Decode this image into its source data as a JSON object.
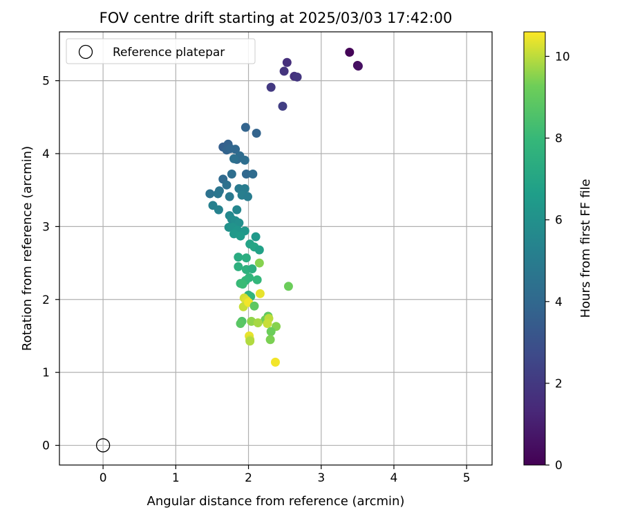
{
  "chart_data": {
    "type": "scatter",
    "title": "FOV centre drift starting at 2025/03/03 17:42:00",
    "xlabel": "Angular distance from reference (arcmin)",
    "ylabel": "Rotation from reference (arcmin)",
    "xlim": [
      -0.6,
      5.35
    ],
    "ylim": [
      -0.27,
      5.67
    ],
    "xticks": [
      0,
      1,
      2,
      3,
      4,
      5
    ],
    "yticks": [
      0,
      1,
      2,
      3,
      4,
      5
    ],
    "grid": true,
    "legend": {
      "placement": "upper-left",
      "entries": [
        "Reference platepar"
      ]
    },
    "reference_point": {
      "label": "Reference platepar",
      "x": 0,
      "y": 0,
      "marker": "hollow-circle"
    },
    "colorbar": {
      "label": "Hours from first FF file",
      "colormap": "viridis",
      "range": [
        0,
        10.6
      ],
      "ticks": [
        0,
        2,
        4,
        6,
        8,
        10
      ]
    },
    "series": [
      {
        "points": [
          {
            "x": 3.39,
            "y": 5.39,
            "c": 0.1
          },
          {
            "x": 3.5,
            "y": 5.21,
            "c": 0.3
          },
          {
            "x": 3.51,
            "y": 5.2,
            "c": 0.5
          },
          {
            "x": 2.53,
            "y": 5.25,
            "c": 1.6
          },
          {
            "x": 2.49,
            "y": 5.13,
            "c": 1.8
          },
          {
            "x": 2.63,
            "y": 5.06,
            "c": 1.7
          },
          {
            "x": 2.67,
            "y": 5.05,
            "c": 1.9
          },
          {
            "x": 2.31,
            "y": 4.91,
            "c": 2.0
          },
          {
            "x": 2.47,
            "y": 4.65,
            "c": 2.2
          },
          {
            "x": 1.96,
            "y": 4.36,
            "c": 3.8
          },
          {
            "x": 2.11,
            "y": 4.28,
            "c": 3.8
          },
          {
            "x": 1.65,
            "y": 4.09,
            "c": 3.6
          },
          {
            "x": 1.72,
            "y": 4.13,
            "c": 3.7
          },
          {
            "x": 1.7,
            "y": 4.05,
            "c": 3.8
          },
          {
            "x": 1.75,
            "y": 4.07,
            "c": 3.9
          },
          {
            "x": 1.82,
            "y": 4.06,
            "c": 4.0
          },
          {
            "x": 1.84,
            "y": 3.92,
            "c": 4.1
          },
          {
            "x": 1.88,
            "y": 3.97,
            "c": 4.2
          },
          {
            "x": 1.95,
            "y": 3.91,
            "c": 4.3
          },
          {
            "x": 1.8,
            "y": 3.93,
            "c": 4.4
          },
          {
            "x": 1.97,
            "y": 3.72,
            "c": 4.0
          },
          {
            "x": 2.06,
            "y": 3.72,
            "c": 4.2
          },
          {
            "x": 1.77,
            "y": 3.72,
            "c": 4.3
          },
          {
            "x": 1.65,
            "y": 3.65,
            "c": 4.1
          },
          {
            "x": 1.7,
            "y": 3.57,
            "c": 4.4
          },
          {
            "x": 1.6,
            "y": 3.49,
            "c": 4.6
          },
          {
            "x": 1.47,
            "y": 3.45,
            "c": 4.5
          },
          {
            "x": 1.58,
            "y": 3.45,
            "c": 4.7
          },
          {
            "x": 1.74,
            "y": 3.41,
            "c": 4.8
          },
          {
            "x": 1.87,
            "y": 3.52,
            "c": 4.9
          },
          {
            "x": 1.95,
            "y": 3.52,
            "c": 5.0
          },
          {
            "x": 1.91,
            "y": 3.43,
            "c": 5.1
          },
          {
            "x": 1.99,
            "y": 3.41,
            "c": 5.0
          },
          {
            "x": 1.51,
            "y": 3.29,
            "c": 5.2
          },
          {
            "x": 1.59,
            "y": 3.23,
            "c": 5.3
          },
          {
            "x": 1.84,
            "y": 3.23,
            "c": 5.5
          },
          {
            "x": 1.74,
            "y": 3.15,
            "c": 5.6
          },
          {
            "x": 1.77,
            "y": 3.1,
            "c": 5.7
          },
          {
            "x": 1.82,
            "y": 3.08,
            "c": 5.8
          },
          {
            "x": 1.87,
            "y": 3.05,
            "c": 5.9
          },
          {
            "x": 1.73,
            "y": 2.99,
            "c": 6.0
          },
          {
            "x": 1.78,
            "y": 2.99,
            "c": 6.1
          },
          {
            "x": 1.85,
            "y": 2.95,
            "c": 6.2
          },
          {
            "x": 1.95,
            "y": 2.94,
            "c": 6.3
          },
          {
            "x": 1.8,
            "y": 2.9,
            "c": 6.4
          },
          {
            "x": 1.89,
            "y": 2.87,
            "c": 6.5
          },
          {
            "x": 2.1,
            "y": 2.86,
            "c": 6.4
          },
          {
            "x": 2.02,
            "y": 2.76,
            "c": 6.9
          },
          {
            "x": 2.08,
            "y": 2.72,
            "c": 7.0
          },
          {
            "x": 2.15,
            "y": 2.68,
            "c": 6.8
          },
          {
            "x": 1.86,
            "y": 2.58,
            "c": 7.3
          },
          {
            "x": 1.97,
            "y": 2.57,
            "c": 7.4
          },
          {
            "x": 2.15,
            "y": 2.5,
            "c": 9.5
          },
          {
            "x": 1.86,
            "y": 2.45,
            "c": 7.5
          },
          {
            "x": 1.97,
            "y": 2.41,
            "c": 7.6
          },
          {
            "x": 2.05,
            "y": 2.42,
            "c": 7.4
          },
          {
            "x": 2.01,
            "y": 2.3,
            "c": 7.8
          },
          {
            "x": 1.96,
            "y": 2.26,
            "c": 7.9
          },
          {
            "x": 2.12,
            "y": 2.27,
            "c": 7.9
          },
          {
            "x": 1.89,
            "y": 2.22,
            "c": 8.0
          },
          {
            "x": 1.92,
            "y": 2.21,
            "c": 8.1
          },
          {
            "x": 2.55,
            "y": 2.18,
            "c": 9.2
          },
          {
            "x": 2.0,
            "y": 2.06,
            "c": 7.7
          },
          {
            "x": 2.03,
            "y": 2.04,
            "c": 7.8
          },
          {
            "x": 2.16,
            "y": 2.08,
            "c": 10.4
          },
          {
            "x": 1.94,
            "y": 2.02,
            "c": 10.2
          },
          {
            "x": 1.97,
            "y": 1.99,
            "c": 10.3
          },
          {
            "x": 1.93,
            "y": 1.9,
            "c": 10.1
          },
          {
            "x": 2.0,
            "y": 1.96,
            "c": 10.5
          },
          {
            "x": 2.08,
            "y": 1.91,
            "c": 8.9
          },
          {
            "x": 2.27,
            "y": 1.77,
            "c": 9.0
          },
          {
            "x": 2.23,
            "y": 1.72,
            "c": 9.3
          },
          {
            "x": 2.28,
            "y": 1.74,
            "c": 10.0
          },
          {
            "x": 1.91,
            "y": 1.7,
            "c": 8.6
          },
          {
            "x": 1.89,
            "y": 1.67,
            "c": 8.8
          },
          {
            "x": 2.04,
            "y": 1.7,
            "c": 9.6
          },
          {
            "x": 2.13,
            "y": 1.68,
            "c": 9.8
          },
          {
            "x": 2.26,
            "y": 1.67,
            "c": 10.1
          },
          {
            "x": 2.38,
            "y": 1.63,
            "c": 9.5
          },
          {
            "x": 2.31,
            "y": 1.56,
            "c": 9.2
          },
          {
            "x": 2.01,
            "y": 1.5,
            "c": 10.4
          },
          {
            "x": 2.02,
            "y": 1.45,
            "c": 10.2
          },
          {
            "x": 2.02,
            "y": 1.43,
            "c": 9.9
          },
          {
            "x": 2.3,
            "y": 1.45,
            "c": 9.4
          },
          {
            "x": 2.37,
            "y": 1.14,
            "c": 10.5
          }
        ]
      }
    ]
  }
}
